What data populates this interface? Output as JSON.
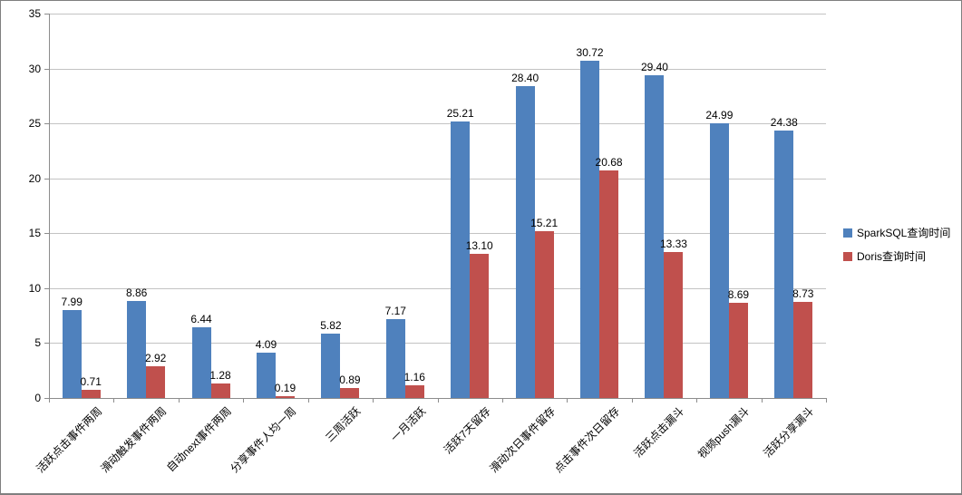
{
  "chart_data": {
    "type": "bar",
    "title": "",
    "xlabel": "",
    "ylabel": "",
    "categories": [
      "活跃点击事件两周",
      "滑动触发事件两周",
      "自动next事件两周",
      "分享事件人均一周",
      "三周活跃",
      "一月活跃",
      "活跃7天留存",
      "滑动次日事件留存",
      "点击事件次日留存",
      "活跃点击漏斗",
      "视频push漏斗",
      "活跃分享漏斗"
    ],
    "series": [
      {
        "name": "SparkSQL查询时间",
        "color": "#4F81BD",
        "values": [
          7.99,
          8.86,
          6.44,
          4.09,
          5.82,
          7.17,
          25.21,
          28.4,
          30.72,
          29.4,
          24.99,
          24.38
        ],
        "value_labels": [
          "7.99",
          "8.86",
          "6.44",
          "4.09",
          "5.82",
          "7.17",
          "25.21",
          "28.40",
          "30.72",
          "29.40",
          "24.99",
          "24.38"
        ]
      },
      {
        "name": "Doris查询时间",
        "color": "#C0504D",
        "values": [
          0.71,
          2.92,
          1.28,
          0.19,
          0.89,
          1.16,
          13.1,
          15.21,
          20.68,
          13.33,
          8.69,
          8.73
        ],
        "value_labels": [
          "0.71",
          "2.92",
          "1.28",
          "0.19",
          "0.89",
          "1.16",
          "13.10",
          "15.21",
          "20.68",
          "13.33",
          "8.69",
          "8.73"
        ]
      }
    ],
    "ylim": [
      0,
      35
    ],
    "ytick_interval": 5,
    "ytick_labels": [
      "0",
      "5",
      "10",
      "15",
      "20",
      "25",
      "30",
      "35"
    ],
    "grid": true,
    "legend_position": "right"
  },
  "colors": {
    "axis": "#8c8c8c",
    "gridline": "#c3c3c3",
    "background": "#ffffff",
    "border": "#7f7f7f",
    "text": "#000000"
  }
}
